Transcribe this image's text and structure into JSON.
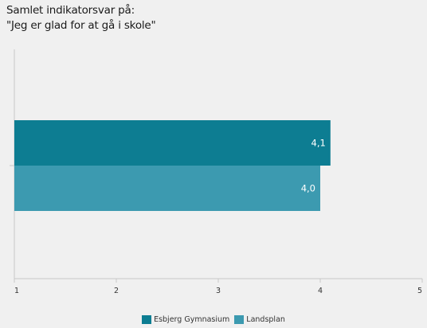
{
  "chart_data": {
    "type": "bar",
    "orientation": "horizontal",
    "title": [
      "Samlet indikatorsvar på:",
      "\"Jeg er glad for at gå i skole\""
    ],
    "categories": [
      ""
    ],
    "series": [
      {
        "name": "Esbjerg Gymnasium",
        "values": [
          4.1
        ],
        "value_labels": [
          "4,1"
        ],
        "color": "#0d7d92"
      },
      {
        "name": "Landsplan",
        "values": [
          4.0
        ],
        "value_labels": [
          "4,0"
        ],
        "color": "#3c9ab0"
      }
    ],
    "xlim": [
      1,
      5
    ],
    "x_ticks": [
      1,
      2,
      3,
      4,
      5
    ],
    "x_tick_labels": [
      "1",
      "2",
      "3",
      "4",
      "5"
    ],
    "xlabel": "",
    "ylabel": "",
    "grid": false,
    "legend_position": "bottom-center"
  },
  "colors": {
    "panel_background": "#f0f0f0",
    "axis": "#c8c8c8",
    "bar_value_text": "#ffffff"
  }
}
